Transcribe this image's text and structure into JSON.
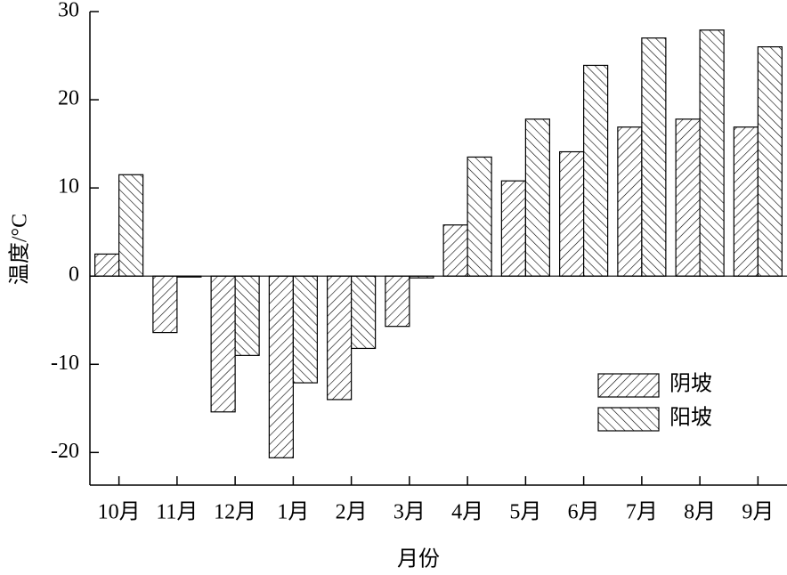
{
  "chart_data": {
    "type": "bar",
    "x_label": "月份",
    "y_label": "温度/°C",
    "categories": [
      "10月",
      "11月",
      "12月",
      "1月",
      "2月",
      "3月",
      "4月",
      "5月",
      "6月",
      "7月",
      "8月",
      "9月"
    ],
    "series": [
      {
        "name": "阴坡",
        "color": "#000000",
        "hatch": "/",
        "values": [
          2.5,
          -6.4,
          -15.4,
          -20.6,
          -14,
          -5.7,
          5.8,
          10.8,
          14.1,
          16.9,
          17.8,
          16.9
        ]
      },
      {
        "name": "阳坡",
        "color": "#000000",
        "hatch": "\\",
        "values": [
          11.5,
          -0.1,
          -9,
          -12.1,
          -8.2,
          -0.2,
          13.5,
          17.8,
          23.9,
          27,
          27.9,
          26
        ]
      }
    ],
    "ylim": [
      -23.7,
      30
    ],
    "yticks": [
      -20,
      -10,
      0,
      10,
      20,
      30
    ],
    "grid": false,
    "legend": "lower right"
  }
}
